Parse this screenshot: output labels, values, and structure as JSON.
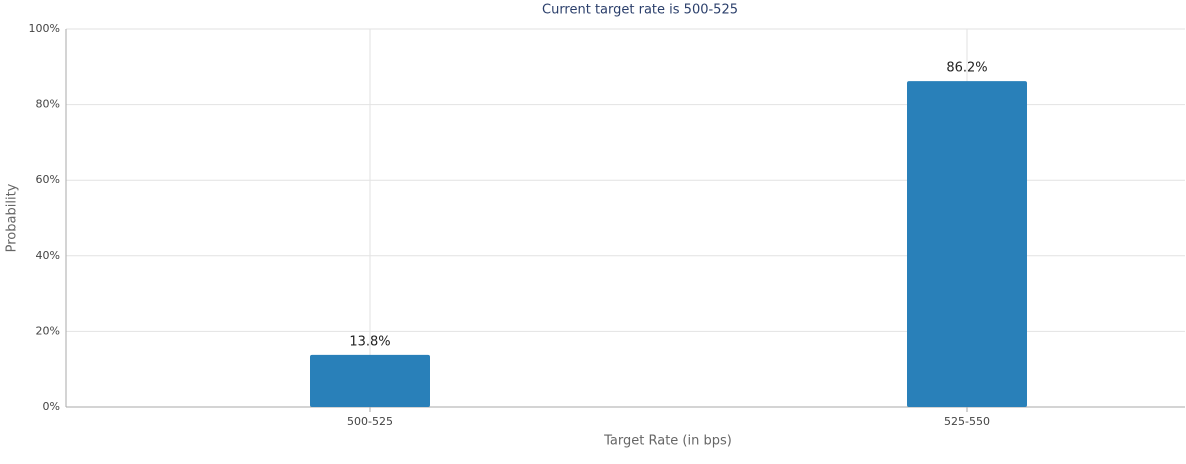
{
  "chart_data": {
    "type": "bar",
    "title": "Current target rate is 500-525",
    "x_label": "Target Rate (in bps)",
    "y_label": "Probability",
    "categories": [
      "500-525",
      "525-550"
    ],
    "values": [
      13.8,
      86.2
    ],
    "value_labels": [
      "13.8%",
      "86.2%"
    ],
    "color": "#2980b9",
    "ylim": [
      0,
      100
    ],
    "yticks": [
      {
        "value": 0,
        "label": "0%"
      },
      {
        "value": 20,
        "label": "20%"
      },
      {
        "value": 40,
        "label": "40%"
      },
      {
        "value": 60,
        "label": "60%"
      },
      {
        "value": 80,
        "label": "80%"
      },
      {
        "value": 100,
        "label": "100%"
      }
    ],
    "grid": true
  }
}
